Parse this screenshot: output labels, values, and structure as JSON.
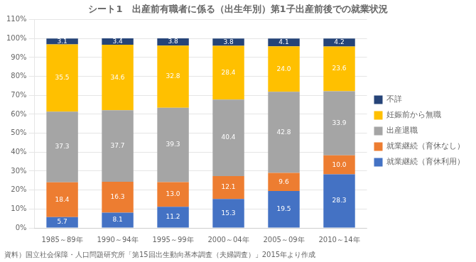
{
  "chart_data": {
    "type": "bar",
    "stacked": true,
    "title": "シート1　出産前有職者に係る（出生年別）第1子出産前後での就業状況",
    "annotations": [
      "資料）国立社会保障・人口問題研究所「第15回出生動向基本調査（夫婦調査）」2015年より作成"
    ],
    "categories": [
      "1985～89年",
      "1990～94年",
      "1995～99年",
      "2000～04年",
      "2005～09年",
      "2010～14年"
    ],
    "series": [
      {
        "name": "就業継続（育休利用）",
        "color": "#4472C4",
        "values": [
          5.7,
          8.1,
          11.2,
          15.3,
          19.5,
          28.3
        ],
        "value_labels": [
          "5.7",
          "8.1",
          "11.2",
          "15.3",
          "19.5",
          "28.3"
        ]
      },
      {
        "name": "就業継続（育休なし）",
        "color": "#ED7D31",
        "values": [
          18.4,
          16.3,
          13.0,
          12.1,
          9.6,
          10.0
        ],
        "value_labels": [
          "18.4",
          "16.3",
          "13.0",
          "12.1",
          "9.6",
          "10.0"
        ]
      },
      {
        "name": "出産退職",
        "color": "#A5A5A5",
        "values": [
          37.3,
          37.7,
          39.3,
          40.4,
          42.8,
          33.9
        ],
        "value_labels": [
          "37.3",
          "37.7",
          "39.3",
          "40.4",
          "42.8",
          "33.9"
        ]
      },
      {
        "name": "妊娠前から無職",
        "color": "#FFC000",
        "values": [
          35.5,
          34.6,
          32.8,
          28.4,
          24.0,
          23.6
        ],
        "value_labels": [
          "35.5",
          "34.6",
          "32.8",
          "28.4",
          "24.0",
          "23.6"
        ]
      },
      {
        "name": "不詳",
        "color": "#264478",
        "values": [
          3.1,
          3.4,
          3.8,
          3.8,
          4.1,
          4.2
        ],
        "value_labels": [
          "3.1",
          "3.4",
          "3.8",
          "3.8",
          "4.1",
          "4.2"
        ]
      }
    ],
    "ylim": [
      0,
      110
    ],
    "yticks": [
      {
        "value": 0,
        "label": "0%"
      },
      {
        "value": 10,
        "label": "10%"
      },
      {
        "value": 20,
        "label": "20%"
      },
      {
        "value": 30,
        "label": "30%"
      },
      {
        "value": 40,
        "label": "40%"
      },
      {
        "value": 50,
        "label": "50%"
      },
      {
        "value": 60,
        "label": "60%"
      },
      {
        "value": 70,
        "label": "70%"
      },
      {
        "value": 80,
        "label": "80%"
      },
      {
        "value": 90,
        "label": "90%"
      },
      {
        "value": 100,
        "label": "100%"
      },
      {
        "value": 110,
        "label": "110%"
      }
    ],
    "grid": "y",
    "legend": "right",
    "data_labels": true
  }
}
